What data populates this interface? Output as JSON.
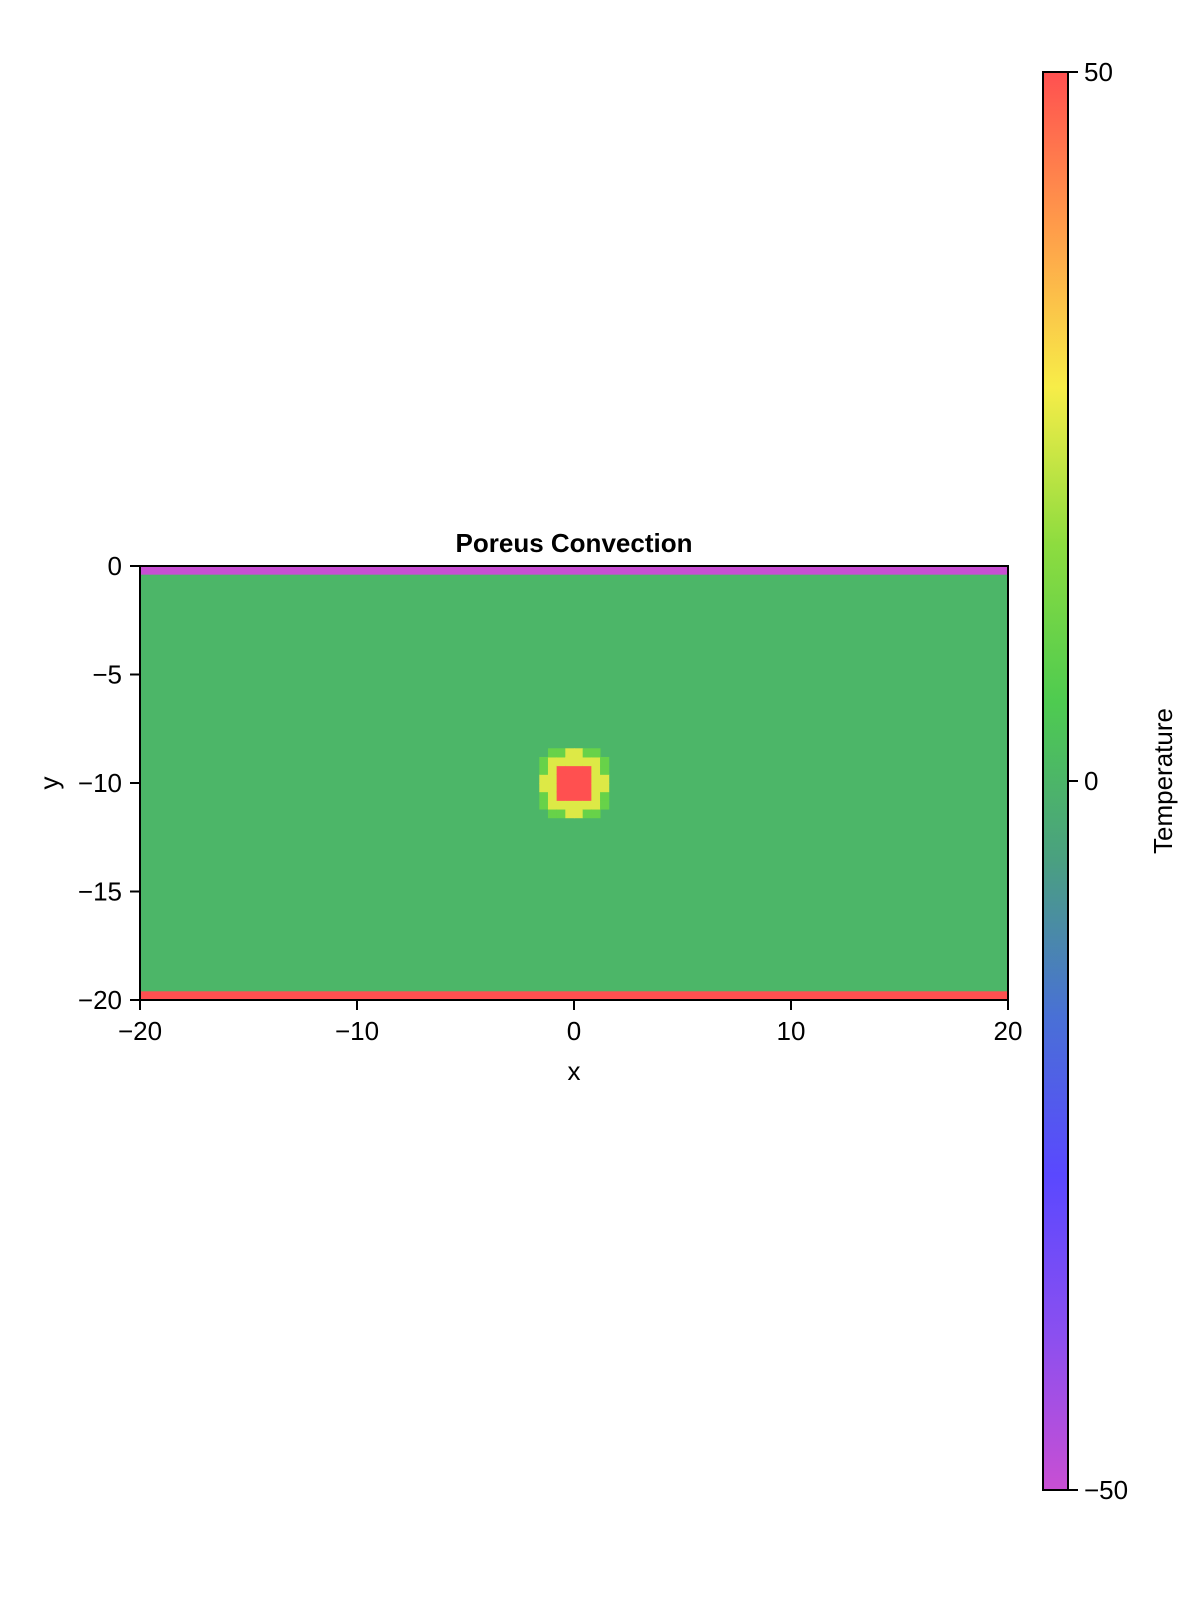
{
  "chart_data": {
    "type": "heatmap",
    "title": "Poreus Convection",
    "xlabel": "x",
    "ylabel": "y",
    "xlim": [
      -20,
      20
    ],
    "ylim": [
      -20,
      0
    ],
    "xticks": [
      -20,
      -10,
      0,
      10,
      20
    ],
    "xtick_labels": [
      "−20",
      "−10",
      "0",
      "10",
      "20"
    ],
    "yticks": [
      0,
      -5,
      -10,
      -15,
      -20
    ],
    "ytick_labels": [
      "0",
      "−5",
      "−10",
      "−15",
      "−20"
    ],
    "grid": false,
    "field": {
      "background_value": 0,
      "top_boundary": {
        "y_range": [
          -0.4,
          0
        ],
        "value": -50
      },
      "bottom_boundary": {
        "y_range": [
          -20,
          -19.6
        ],
        "value": 50
      },
      "anomaly": {
        "shape": "circle",
        "center": [
          0,
          -10
        ],
        "core_radius": 1.0,
        "outer_radius": 1.8,
        "core_value": 50,
        "rim_value": 25,
        "halo_value": 10
      }
    },
    "colorbar": {
      "label": "Temperature",
      "range": [
        -50,
        50
      ],
      "ticks": [
        50,
        0,
        -50
      ],
      "tick_labels": [
        "50",
        "0",
        "−50"
      ],
      "colors": [
        "#c84fd3",
        "#8a4ff0",
        "#5a48ff",
        "#4970d6",
        "#4aa080",
        "#4ecb50",
        "#8ddc3f",
        "#f7ed48",
        "#ff9d4a",
        "#ff5050"
      ]
    }
  }
}
